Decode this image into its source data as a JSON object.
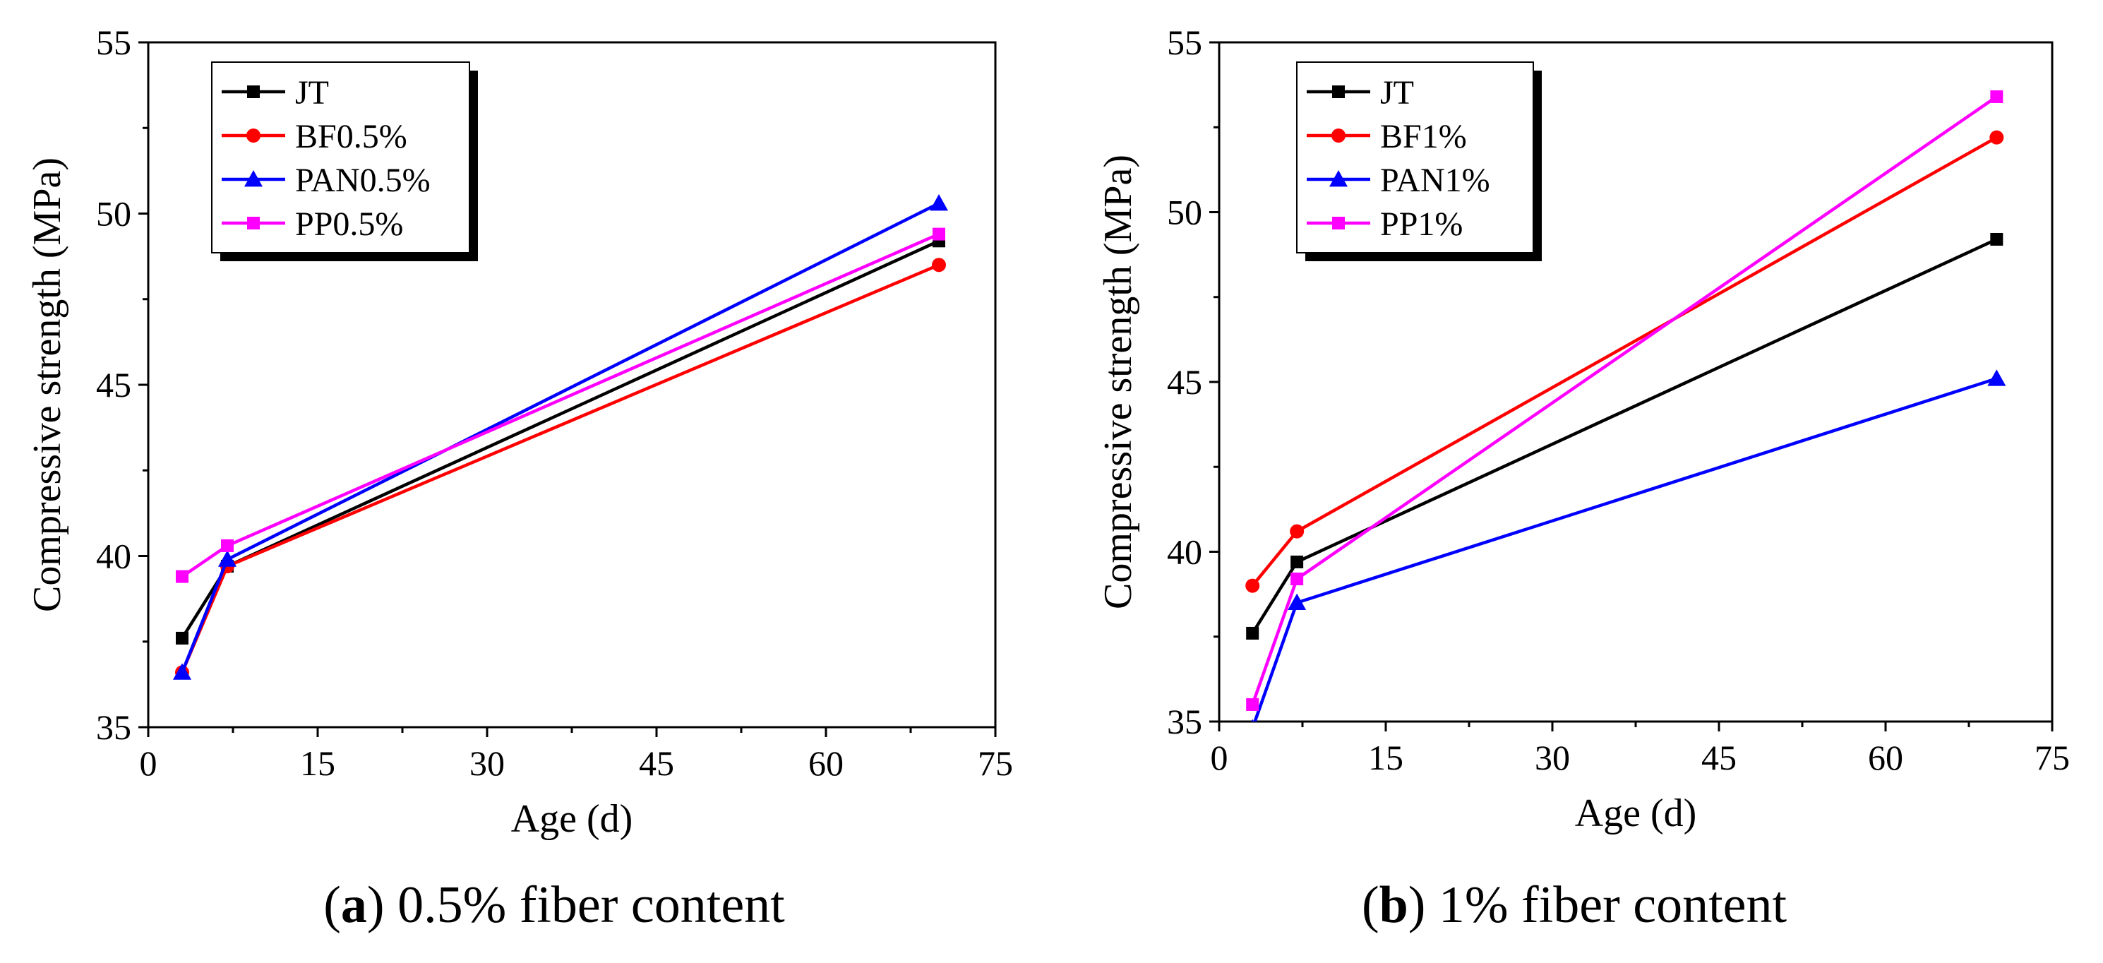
{
  "chart_data": [
    {
      "type": "line",
      "panel_label": "a",
      "caption": "0.5% fiber content",
      "xlabel": "Age (d)",
      "ylabel": "Compressive strength (MPa)",
      "xlim": [
        0,
        75
      ],
      "ylim": [
        35,
        55
      ],
      "xticks": [
        0,
        15,
        30,
        45,
        60,
        75
      ],
      "yticks": [
        35,
        40,
        45,
        50,
        55
      ],
      "grid": false,
      "legend_position": "top-left",
      "series": [
        {
          "name": "JT",
          "color": "#000000",
          "marker": "square",
          "x": [
            3,
            7,
            70
          ],
          "y": [
            37.6,
            39.7,
            49.2
          ]
        },
        {
          "name": "BF0.5%",
          "color": "#ff0000",
          "marker": "circle",
          "x": [
            3,
            7,
            70
          ],
          "y": [
            36.6,
            39.7,
            48.5
          ]
        },
        {
          "name": "PAN0.5%",
          "color": "#0000ff",
          "marker": "triangle",
          "x": [
            3,
            7,
            70
          ],
          "y": [
            36.6,
            39.9,
            50.3
          ]
        },
        {
          "name": "PP0.5%",
          "color": "#ff00ff",
          "marker": "square",
          "x": [
            3,
            7,
            70
          ],
          "y": [
            39.4,
            40.3,
            49.4
          ]
        }
      ]
    },
    {
      "type": "line",
      "panel_label": "b",
      "caption": "1% fiber content",
      "xlabel": "Age (d)",
      "ylabel": "Compressive strength (MPa)",
      "xlim": [
        0,
        75
      ],
      "ylim": [
        35,
        55
      ],
      "xticks": [
        0,
        15,
        30,
        45,
        60,
        75
      ],
      "yticks": [
        35,
        40,
        45,
        50,
        55
      ],
      "grid": false,
      "legend_position": "top-left",
      "series": [
        {
          "name": "JT",
          "color": "#000000",
          "marker": "square",
          "x": [
            3,
            7,
            70
          ],
          "y": [
            37.6,
            39.7,
            49.2
          ]
        },
        {
          "name": "BF1%",
          "color": "#ff0000",
          "marker": "circle",
          "x": [
            3,
            7,
            70
          ],
          "y": [
            39.0,
            40.6,
            52.2
          ]
        },
        {
          "name": "PAN1%",
          "color": "#0000ff",
          "marker": "triangle",
          "x": [
            3,
            7,
            70
          ],
          "y": [
            34.8,
            38.5,
            45.1
          ]
        },
        {
          "name": "PP1%",
          "color": "#ff00ff",
          "marker": "square",
          "x": [
            3,
            7,
            70
          ],
          "y": [
            35.5,
            39.2,
            53.4
          ]
        }
      ]
    }
  ]
}
